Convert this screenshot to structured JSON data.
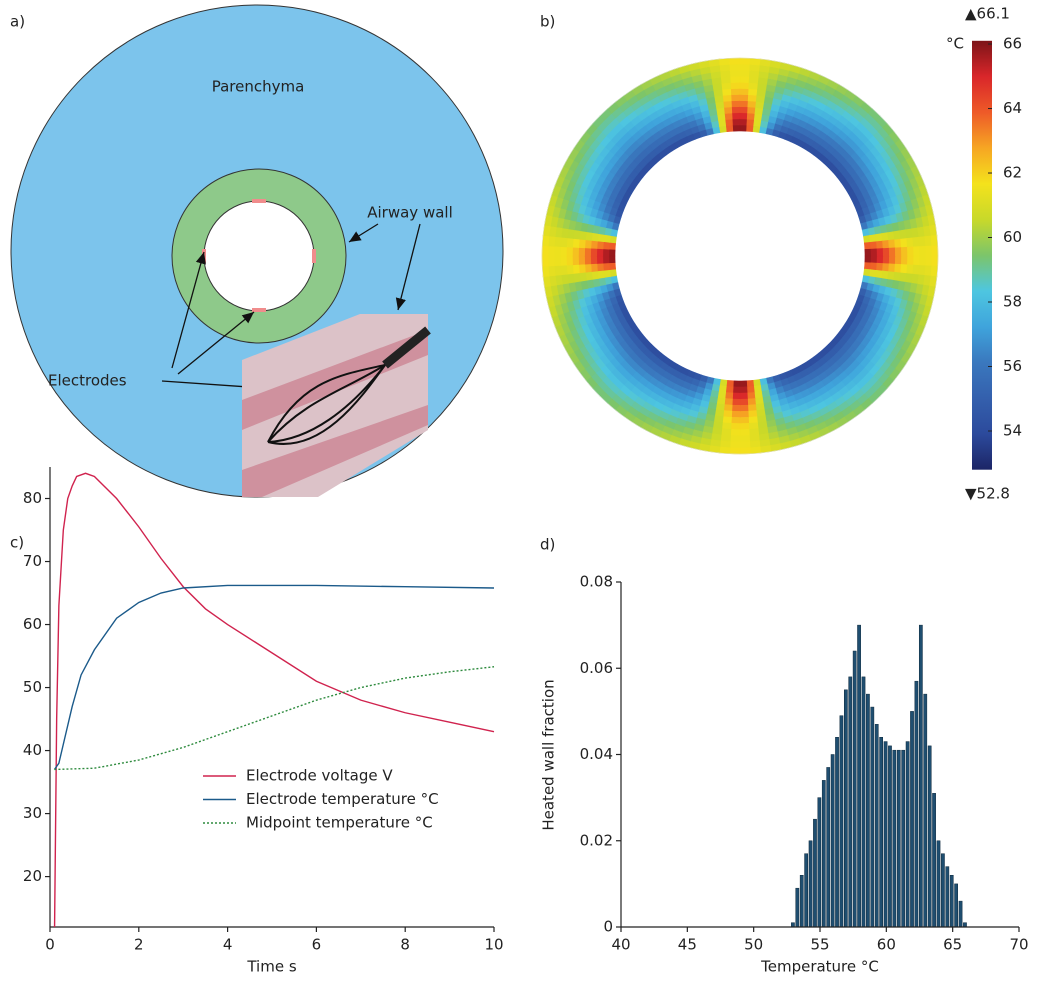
{
  "diagram": {
    "label": "a)",
    "parenchyma": "Parenchyma",
    "airway_wall": "Airway wall",
    "electrodes": "Electrodes"
  },
  "chart_data": [
    {
      "type": "heatmap",
      "label": "b)",
      "unit": "°C",
      "clim": [
        52.8,
        66.1
      ],
      "clim_labels": [
        "▼52.8",
        "▲66.1"
      ],
      "cticks": [
        54,
        56,
        58,
        60,
        62,
        64,
        66
      ],
      "colormap": [
        "#1c2566",
        "#2c4a9c",
        "#3460ad",
        "#3a78be",
        "#3fa4dc",
        "#4ec6e0",
        "#7cc56a",
        "#c8d92a",
        "#f4e21c",
        "#f6a623",
        "#ee5a28",
        "#d9262a",
        "#7d1418"
      ]
    },
    {
      "type": "line",
      "label": "c)",
      "xlabel": "Time s",
      "xlim": [
        0,
        10
      ],
      "xticks": [
        0,
        2,
        4,
        6,
        8,
        10
      ],
      "ylim": [
        12,
        85
      ],
      "yticks": [
        20,
        30,
        40,
        50,
        60,
        70,
        80
      ],
      "legend": "lower right",
      "series": [
        {
          "name": "Electrode voltage V",
          "color": "#d0234e",
          "dash": false,
          "x": [
            0.1,
            0.15,
            0.2,
            0.3,
            0.4,
            0.5,
            0.6,
            0.8,
            1,
            1.5,
            2,
            2.5,
            3,
            3.5,
            4,
            5,
            6,
            7,
            8,
            9,
            10
          ],
          "values": [
            10,
            45,
            63,
            75,
            80,
            82,
            83.5,
            84,
            83.5,
            80,
            75.5,
            70.5,
            66,
            62.5,
            60,
            55.5,
            51,
            48,
            46,
            44.5,
            43
          ]
        },
        {
          "name": "Electrode temperature °C",
          "color": "#1b5a8a",
          "dash": false,
          "x": [
            0.1,
            0.2,
            0.3,
            0.5,
            0.7,
            1,
            1.5,
            2,
            2.5,
            3,
            4,
            6,
            8,
            10
          ],
          "values": [
            37,
            38,
            41,
            47,
            52,
            56,
            61,
            63.5,
            65,
            65.8,
            66.2,
            66.2,
            66,
            65.8
          ]
        },
        {
          "name": "Midpoint temperature °C",
          "color": "#2e8b3e",
          "dash": true,
          "x": [
            0.1,
            1,
            2,
            3,
            4,
            5,
            6,
            7,
            8,
            9,
            10
          ],
          "values": [
            37,
            37.2,
            38.5,
            40.5,
            43,
            45.5,
            48,
            50,
            51.5,
            52.5,
            53.3
          ]
        }
      ]
    },
    {
      "type": "histogram",
      "label": "d)",
      "xlabel": "Temperature °C",
      "ylabel": "Heated wall fraction",
      "xlim": [
        40,
        70
      ],
      "xticks": [
        40,
        45,
        50,
        55,
        60,
        65,
        70
      ],
      "ylim": [
        0,
        0.08
      ],
      "yticks": [
        0,
        0.02,
        0.04,
        0.06,
        0.08
      ],
      "color": "#1f4e70",
      "bins": [
        52.8,
        53.1325,
        53.465,
        53.7975,
        54.13,
        54.4625,
        54.795,
        55.1275,
        55.46,
        55.7925,
        56.125,
        56.4575,
        56.79,
        57.1225,
        57.455,
        57.7875,
        58.12,
        58.4525,
        58.785,
        59.1175,
        59.45,
        59.7825,
        60.115,
        60.4475,
        60.78,
        61.1125,
        61.445,
        61.7775,
        62.11,
        62.4425,
        62.775,
        63.1075,
        63.44,
        63.7725,
        64.105,
        64.4375,
        64.77,
        65.1025,
        65.435,
        65.7675,
        66.1
      ],
      "values": [
        0.001,
        0.009,
        0.012,
        0.017,
        0.02,
        0.025,
        0.03,
        0.034,
        0.037,
        0.04,
        0.044,
        0.049,
        0.055,
        0.058,
        0.064,
        0.07,
        0.058,
        0.054,
        0.051,
        0.047,
        0.044,
        0.043,
        0.042,
        0.041,
        0.041,
        0.041,
        0.043,
        0.05,
        0.057,
        0.07,
        0.054,
        0.042,
        0.031,
        0.02,
        0.017,
        0.014,
        0.012,
        0.01,
        0.006,
        0.001
      ]
    }
  ]
}
